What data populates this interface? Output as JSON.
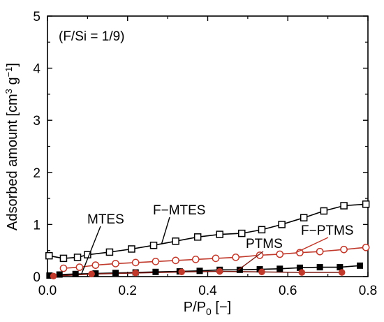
{
  "chart_data": {
    "type": "line",
    "annotation": "(F/Si = 1/9)",
    "xlabel_main": "P/P",
    "xlabel_sub": "0",
    "xlabel_tail": " [−]",
    "ylabel_main": "Adsorbed amount [cm",
    "ylabel_sup1": "3",
    "ylabel_mid": " g",
    "ylabel_sup2": "−1",
    "ylabel_tail": "]",
    "xlim": [
      0.0,
      0.8
    ],
    "ylim": [
      0,
      5
    ],
    "xticks": [
      "0.0",
      "0.2",
      "0.4",
      "0.6",
      "0.8"
    ],
    "yticks": [
      "0",
      "1",
      "2",
      "3",
      "4",
      "5"
    ],
    "grid": false,
    "series": [
      {
        "name": "F−MTES",
        "marker": "open-square",
        "color": "#000000",
        "x": [
          0.004,
          0.04,
          0.075,
          0.1,
          0.155,
          0.21,
          0.265,
          0.32,
          0.375,
          0.43,
          0.485,
          0.535,
          0.585,
          0.64,
          0.69,
          0.74,
          0.795
        ],
        "y": [
          0.4,
          0.35,
          0.37,
          0.42,
          0.47,
          0.53,
          0.6,
          0.68,
          0.76,
          0.81,
          0.83,
          0.9,
          1.0,
          1.13,
          1.26,
          1.36,
          1.39
        ]
      },
      {
        "name": "F−PTMS",
        "marker": "open-circle",
        "color": "#c0392b",
        "x": [
          0.04,
          0.08,
          0.12,
          0.17,
          0.22,
          0.27,
          0.32,
          0.37,
          0.42,
          0.47,
          0.53,
          0.58,
          0.63,
          0.68,
          0.74,
          0.795
        ],
        "y": [
          0.16,
          0.18,
          0.22,
          0.25,
          0.27,
          0.29,
          0.31,
          0.33,
          0.35,
          0.37,
          0.41,
          0.43,
          0.46,
          0.48,
          0.52,
          0.56
        ]
      },
      {
        "name": "MTES",
        "marker": "filled-square",
        "color": "#000000",
        "x": [
          0.005,
          0.03,
          0.07,
          0.12,
          0.17,
          0.22,
          0.27,
          0.33,
          0.38,
          0.43,
          0.48,
          0.53,
          0.58,
          0.63,
          0.68,
          0.73,
          0.78
        ],
        "y": [
          0.02,
          0.04,
          0.05,
          0.06,
          0.07,
          0.08,
          0.09,
          0.1,
          0.11,
          0.13,
          0.13,
          0.14,
          0.15,
          0.17,
          0.18,
          0.18,
          0.21
        ]
      },
      {
        "name": "PTMS",
        "marker": "filled-circle",
        "color": "#c0392b",
        "x": [
          0.015,
          0.11,
          0.22,
          0.335,
          0.43,
          0.535,
          0.635,
          0.735
        ],
        "y": [
          0.01,
          0.05,
          0.07,
          0.09,
          0.1,
          0.09,
          0.08,
          0.08
        ]
      }
    ],
    "labels": [
      {
        "text": "F−MTES",
        "series": "F−MTES"
      },
      {
        "text": "F−PTMS",
        "series": "F−PTMS"
      },
      {
        "text": "MTES",
        "series": "MTES"
      },
      {
        "text": "PTMS",
        "series": "PTMS"
      }
    ]
  }
}
